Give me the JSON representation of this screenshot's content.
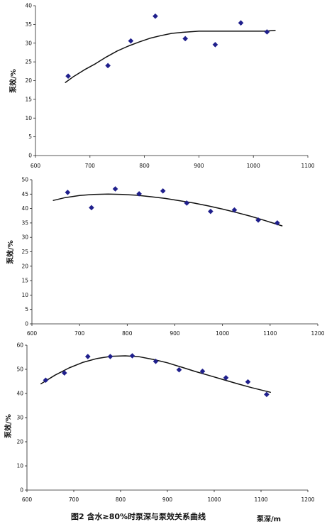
{
  "figure": {
    "caption": "图2 含水≥80%时泵深与泵效关系曲线"
  },
  "chart_data": [
    {
      "type": "scatter",
      "ylabel": "泵效/%",
      "xlabel": "",
      "xlim": [
        600,
        1100
      ],
      "ylim": [
        0,
        40
      ],
      "xticks": [
        600,
        700,
        800,
        900,
        1000,
        1100
      ],
      "yticks": [
        0,
        5,
        10,
        15,
        20,
        25,
        30,
        35,
        40
      ],
      "marker_color": "#1f1f8c",
      "points": [
        {
          "x": 660,
          "y": 21.2
        },
        {
          "x": 733,
          "y": 24
        },
        {
          "x": 775,
          "y": 30.6
        },
        {
          "x": 820,
          "y": 37.2
        },
        {
          "x": 875,
          "y": 31.2
        },
        {
          "x": 930,
          "y": 29.6
        },
        {
          "x": 977,
          "y": 35.4
        },
        {
          "x": 1025,
          "y": 33
        }
      ],
      "trendline": {
        "x": [
          655,
          670,
          690,
          710,
          730,
          750,
          770,
          790,
          810,
          830,
          850,
          870,
          900,
          930,
          960,
          990,
          1020,
          1040
        ],
        "y": [
          19.5,
          21.1,
          22.9,
          24.5,
          26.3,
          27.9,
          29.2,
          30.3,
          31.3,
          32,
          32.6,
          32.9,
          33.2,
          33.2,
          33.2,
          33.2,
          33.2,
          33.4
        ]
      }
    },
    {
      "type": "scatter",
      "ylabel": "泵效/%",
      "xlabel": "",
      "xlim": [
        600,
        1200
      ],
      "ylim": [
        0,
        50
      ],
      "xticks": [
        600,
        700,
        800,
        900,
        1000,
        1100,
        1200
      ],
      "yticks": [
        0,
        5,
        10,
        15,
        20,
        25,
        30,
        35,
        40,
        45,
        50
      ],
      "marker_color": "#1f1f8c",
      "points": [
        {
          "x": 675,
          "y": 45.6
        },
        {
          "x": 725,
          "y": 40.3
        },
        {
          "x": 775,
          "y": 46.8
        },
        {
          "x": 825,
          "y": 45.1
        },
        {
          "x": 875,
          "y": 46.1
        },
        {
          "x": 925,
          "y": 41.9
        },
        {
          "x": 975,
          "y": 39
        },
        {
          "x": 1025,
          "y": 39.5
        },
        {
          "x": 1075,
          "y": 36
        },
        {
          "x": 1115,
          "y": 35
        }
      ],
      "trendline": {
        "x": [
          645,
          670,
          700,
          730,
          760,
          790,
          820,
          850,
          880,
          910,
          940,
          970,
          1000,
          1030,
          1060,
          1090,
          1125
        ],
        "y": [
          42.8,
          43.8,
          44.5,
          44.9,
          45,
          44.9,
          44.6,
          44.1,
          43.5,
          42.7,
          41.9,
          40.9,
          39.8,
          38.6,
          37.3,
          35.8,
          34
        ]
      }
    },
    {
      "type": "scatter",
      "ylabel": "泵效/%",
      "xlabel": "泵深/m",
      "xlim": [
        600,
        1200
      ],
      "ylim": [
        0,
        60
      ],
      "xticks": [
        600,
        700,
        800,
        900,
        1000,
        1100,
        1200
      ],
      "yticks": [
        0,
        10,
        20,
        30,
        40,
        50,
        60
      ],
      "marker_color": "#1f1f8c",
      "points": [
        {
          "x": 640,
          "y": 45.5
        },
        {
          "x": 680,
          "y": 48.5
        },
        {
          "x": 730,
          "y": 55.3
        },
        {
          "x": 778,
          "y": 55.3
        },
        {
          "x": 825,
          "y": 55.6
        },
        {
          "x": 875,
          "y": 53.3
        },
        {
          "x": 925,
          "y": 49.8
        },
        {
          "x": 975,
          "y": 49.2
        },
        {
          "x": 1025,
          "y": 46.5
        },
        {
          "x": 1072,
          "y": 44.8
        },
        {
          "x": 1112,
          "y": 39.6
        }
      ],
      "trendline": {
        "x": [
          630,
          660,
          690,
          720,
          750,
          780,
          810,
          840,
          870,
          900,
          930,
          960,
          990,
          1020,
          1050,
          1080,
          1120
        ],
        "y": [
          44,
          47.6,
          50.6,
          52.9,
          54.5,
          55.4,
          55.6,
          55.2,
          54.1,
          52.7,
          50.9,
          49.1,
          47.4,
          45.7,
          44,
          42.4,
          40.5
        ]
      }
    }
  ]
}
